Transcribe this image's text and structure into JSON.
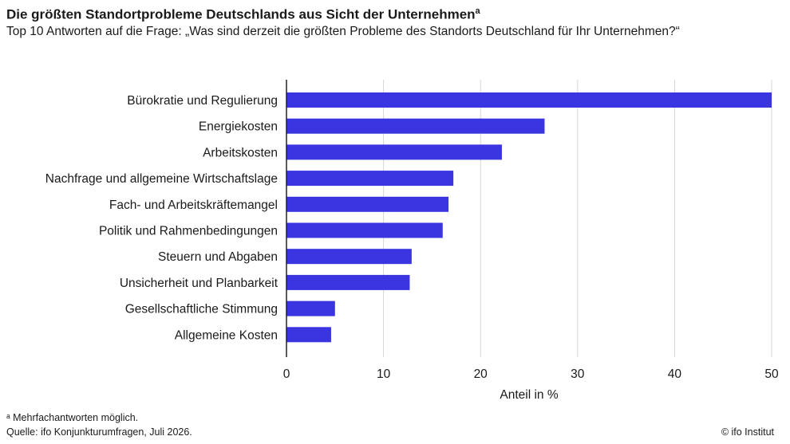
{
  "header": {
    "title": "Die größten Standortprobleme Deutschlands aus Sicht der Unternehmen",
    "title_marker": "a",
    "subtitle": "Top 10 Antworten auf die Frage: „Was sind derzeit die größten Probleme des Standorts Deutschland für Ihr Unternehmen?“"
  },
  "chart_data": {
    "type": "bar",
    "orientation": "horizontal",
    "categories": [
      "Bürokratie und Regulierung",
      "Energiekosten",
      "Arbeitskosten",
      "Nachfrage und allgemeine Wirtschaftslage",
      "Fach- und Arbeitskräftemangel",
      "Politik und Rahmenbedingungen",
      "Steuern und Abgaben",
      "Unsicherheit und Planbarkeit",
      "Gesellschaftliche Stimmung",
      "Allgemeine Kosten"
    ],
    "values": [
      50,
      26.6,
      22.2,
      17.2,
      16.7,
      16.1,
      12.9,
      12.7,
      5.0,
      4.6
    ],
    "xlabel": "Anteil in %",
    "xlim": [
      0,
      50
    ],
    "xticks": [
      0,
      10,
      20,
      30,
      40,
      50
    ],
    "grid": true,
    "bar_color": "#3a35e0"
  },
  "footer": {
    "note": "ᵃ Mehrfachantworten möglich.",
    "source": "Quelle: ifo Konjunkturumfragen, Juli 2026.",
    "credit": "© ifo Institut"
  }
}
